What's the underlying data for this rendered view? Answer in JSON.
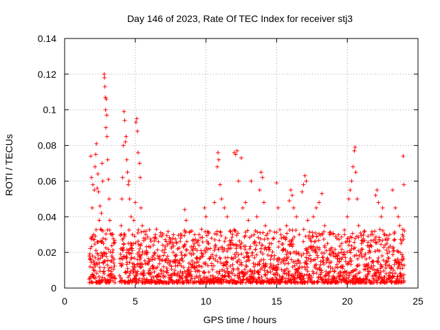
{
  "chart_data": {
    "type": "scatter",
    "title": "Day 146 of 2023, Rate Of TEC Index for receiver stj3",
    "xlabel": "GPS time / hours",
    "ylabel": "ROTI / TECUs",
    "xlim": [
      0,
      25
    ],
    "ylim": [
      0,
      0.14
    ],
    "xticks": [
      "0",
      "5",
      "10",
      "15",
      "20",
      "25"
    ],
    "yticks": [
      "0",
      "0.02",
      "0.04",
      "0.06",
      "0.08",
      "0.1",
      "0.12",
      "0.14"
    ],
    "grid": true,
    "marker": "+",
    "series": [
      {
        "name": "ROTI",
        "color": "#ff0000",
        "points": [
          [
            1.8,
            0.012
          ],
          [
            1.85,
            0.074
          ],
          [
            1.9,
            0.062
          ],
          [
            1.95,
            0.045
          ],
          [
            2.0,
            0.058
          ],
          [
            2.05,
            0.03
          ],
          [
            2.1,
            0.055
          ],
          [
            2.15,
            0.068
          ],
          [
            2.2,
            0.075
          ],
          [
            2.25,
            0.081
          ],
          [
            2.3,
            0.056
          ],
          [
            2.35,
            0.064
          ],
          [
            2.4,
            0.054
          ],
          [
            2.45,
            0.038
          ],
          [
            2.5,
            0.046
          ],
          [
            2.55,
            0.033
          ],
          [
            2.6,
            0.042
          ],
          [
            2.65,
            0.07
          ],
          [
            2.7,
            0.06
          ],
          [
            2.75,
            0.025
          ],
          [
            2.8,
            0.12
          ],
          [
            2.82,
            0.118
          ],
          [
            2.85,
            0.113
          ],
          [
            2.88,
            0.107
          ],
          [
            2.9,
            0.1
          ],
          [
            2.92,
            0.09
          ],
          [
            2.95,
            0.106
          ],
          [
            2.98,
            0.097
          ],
          [
            3.0,
            0.085
          ],
          [
            3.05,
            0.072
          ],
          [
            3.1,
            0.061
          ],
          [
            3.15,
            0.05
          ],
          [
            3.2,
            0.038
          ],
          [
            3.3,
            0.03
          ],
          [
            3.4,
            0.02
          ],
          [
            4.0,
            0.035
          ],
          [
            4.05,
            0.05
          ],
          [
            4.1,
            0.062
          ],
          [
            4.15,
            0.08
          ],
          [
            4.2,
            0.099
          ],
          [
            4.25,
            0.094
          ],
          [
            4.3,
            0.082
          ],
          [
            4.35,
            0.085
          ],
          [
            4.4,
            0.072
          ],
          [
            4.45,
            0.065
          ],
          [
            4.5,
            0.058
          ],
          [
            4.55,
            0.06
          ],
          [
            4.6,
            0.05
          ],
          [
            4.7,
            0.04
          ],
          [
            4.8,
            0.03
          ],
          [
            4.9,
            0.038
          ],
          [
            5.0,
            0.048
          ],
          [
            5.05,
            0.093
          ],
          [
            5.1,
            0.095
          ],
          [
            5.15,
            0.088
          ],
          [
            5.2,
            0.076
          ],
          [
            5.3,
            0.07
          ],
          [
            5.35,
            0.062
          ],
          [
            5.4,
            0.045
          ],
          [
            5.5,
            0.035
          ],
          [
            5.6,
            0.028
          ],
          [
            5.8,
            0.02
          ],
          [
            6.0,
            0.015
          ],
          [
            6.2,
            0.012
          ],
          [
            6.5,
            0.033
          ],
          [
            6.6,
            0.018
          ],
          [
            6.8,
            0.01
          ],
          [
            7.0,
            0.012
          ],
          [
            7.2,
            0.009
          ],
          [
            7.5,
            0.015
          ],
          [
            7.8,
            0.01
          ],
          [
            8.0,
            0.022
          ],
          [
            8.2,
            0.028
          ],
          [
            8.5,
            0.044
          ],
          [
            8.6,
            0.038
          ],
          [
            8.8,
            0.014
          ],
          [
            9.0,
            0.032
          ],
          [
            9.2,
            0.03
          ],
          [
            9.5,
            0.024
          ],
          [
            9.7,
            0.018
          ],
          [
            9.9,
            0.045
          ],
          [
            10.0,
            0.04
          ],
          [
            10.2,
            0.025
          ],
          [
            10.4,
            0.028
          ],
          [
            10.6,
            0.048
          ],
          [
            10.8,
            0.068
          ],
          [
            10.85,
            0.076
          ],
          [
            10.9,
            0.072
          ],
          [
            11.0,
            0.058
          ],
          [
            11.1,
            0.05
          ],
          [
            11.3,
            0.045
          ],
          [
            11.5,
            0.04
          ],
          [
            11.7,
            0.032
          ],
          [
            12.0,
            0.076
          ],
          [
            12.1,
            0.075
          ],
          [
            12.2,
            0.077
          ],
          [
            12.3,
            0.06
          ],
          [
            12.5,
            0.073
          ],
          [
            12.6,
            0.045
          ],
          [
            12.8,
            0.048
          ],
          [
            13.0,
            0.038
          ],
          [
            13.2,
            0.06
          ],
          [
            13.4,
            0.03
          ],
          [
            13.6,
            0.04
          ],
          [
            13.8,
            0.055
          ],
          [
            13.9,
            0.065
          ],
          [
            14.0,
            0.062
          ],
          [
            14.1,
            0.048
          ],
          [
            14.2,
            0.035
          ],
          [
            14.5,
            0.025
          ],
          [
            14.8,
            0.028
          ],
          [
            15.0,
            0.059
          ],
          [
            15.1,
            0.045
          ],
          [
            15.3,
            0.03
          ],
          [
            15.5,
            0.022
          ],
          [
            15.7,
            0.035
          ],
          [
            15.9,
            0.049
          ],
          [
            16.0,
            0.055
          ],
          [
            16.1,
            0.052
          ],
          [
            16.2,
            0.045
          ],
          [
            16.4,
            0.04
          ],
          [
            16.6,
            0.03
          ],
          [
            16.8,
            0.054
          ],
          [
            16.9,
            0.058
          ],
          [
            17.0,
            0.063
          ],
          [
            17.1,
            0.06
          ],
          [
            17.2,
            0.038
          ],
          [
            17.4,
            0.028
          ],
          [
            17.6,
            0.04
          ],
          [
            17.8,
            0.045
          ],
          [
            18.0,
            0.048
          ],
          [
            18.2,
            0.053
          ],
          [
            18.4,
            0.035
          ],
          [
            18.6,
            0.025
          ],
          [
            18.8,
            0.022
          ],
          [
            19.0,
            0.02
          ],
          [
            19.3,
            0.018
          ],
          [
            19.6,
            0.025
          ],
          [
            19.8,
            0.03
          ],
          [
            20.0,
            0.04
          ],
          [
            20.1,
            0.05
          ],
          [
            20.2,
            0.055
          ],
          [
            20.3,
            0.06
          ],
          [
            20.4,
            0.068
          ],
          [
            20.5,
            0.077
          ],
          [
            20.55,
            0.079
          ],
          [
            20.6,
            0.065
          ],
          [
            20.7,
            0.05
          ],
          [
            20.8,
            0.035
          ],
          [
            21.0,
            0.025
          ],
          [
            21.2,
            0.018
          ],
          [
            21.5,
            0.02
          ],
          [
            21.8,
            0.03
          ],
          [
            22.0,
            0.052
          ],
          [
            22.1,
            0.055
          ],
          [
            22.2,
            0.048
          ],
          [
            22.4,
            0.04
          ],
          [
            22.5,
            0.045
          ],
          [
            22.6,
            0.03
          ],
          [
            22.8,
            0.025
          ],
          [
            23.0,
            0.03
          ],
          [
            23.2,
            0.055
          ],
          [
            23.4,
            0.045
          ],
          [
            23.6,
            0.04
          ],
          [
            23.7,
            0.035
          ],
          [
            23.8,
            0.025
          ],
          [
            23.9,
            0.03
          ],
          [
            23.95,
            0.074
          ],
          [
            24.0,
            0.058
          ]
        ]
      }
    ]
  }
}
